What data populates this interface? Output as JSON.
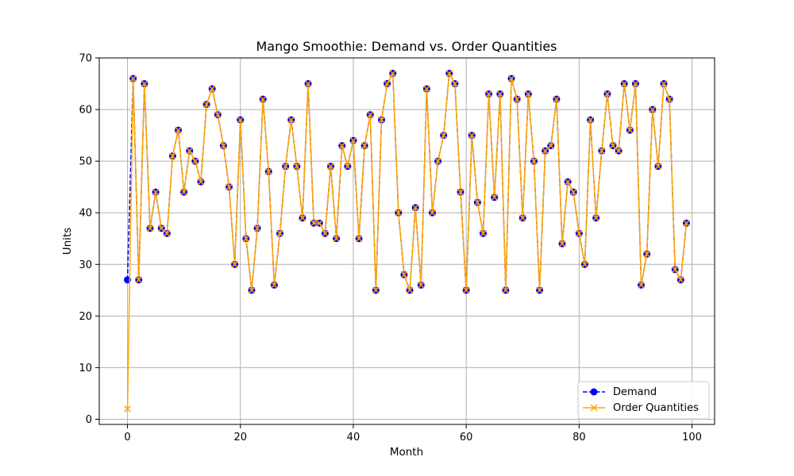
{
  "chart_data": {
    "type": "line",
    "title": "Mango Smoothie: Demand vs. Order Quantities",
    "xlabel": "Month",
    "ylabel": "Units",
    "xlim": [
      -5,
      104
    ],
    "ylim": [
      -1,
      70
    ],
    "xticks": [
      0,
      20,
      40,
      60,
      80,
      100
    ],
    "yticks": [
      0,
      10,
      20,
      30,
      40,
      50,
      60,
      70
    ],
    "grid": true,
    "legend_position": "lower-right",
    "series": [
      {
        "name": "Demand",
        "color": "#0000ff",
        "marker": "circle",
        "linestyle": "dashed",
        "values": [
          27,
          66,
          27,
          65,
          37,
          44,
          37,
          36,
          51,
          56,
          44,
          52,
          50,
          46,
          61,
          64,
          59,
          53,
          45,
          30,
          58,
          35,
          25,
          37,
          62,
          48,
          26,
          36,
          49,
          58,
          49,
          39,
          65,
          38,
          38,
          36,
          49,
          35,
          53,
          49,
          54,
          35,
          53,
          59,
          25,
          58,
          65,
          67,
          40,
          28,
          25,
          41,
          26,
          64,
          40,
          50,
          55,
          67,
          65,
          44,
          25,
          55,
          42,
          36,
          63,
          43,
          63,
          25,
          66,
          62,
          39,
          63,
          50,
          25,
          52,
          53,
          62,
          34,
          46,
          44,
          36,
          30,
          58,
          39,
          52,
          63,
          53,
          52,
          65,
          56,
          65,
          26,
          32,
          60,
          49,
          65,
          62,
          29,
          27,
          38
        ]
      },
      {
        "name": "Order Quantities",
        "color": "#ffa500",
        "marker": "x",
        "linestyle": "solid",
        "values": [
          2,
          66,
          27,
          65,
          37,
          44,
          37,
          36,
          51,
          56,
          44,
          52,
          50,
          46,
          61,
          64,
          59,
          53,
          45,
          30,
          58,
          35,
          25,
          37,
          62,
          48,
          26,
          36,
          49,
          58,
          49,
          39,
          65,
          38,
          38,
          36,
          49,
          35,
          53,
          49,
          54,
          35,
          53,
          59,
          25,
          58,
          65,
          67,
          40,
          28,
          25,
          41,
          26,
          64,
          40,
          50,
          55,
          67,
          65,
          44,
          25,
          55,
          42,
          36,
          63,
          43,
          63,
          25,
          66,
          62,
          39,
          63,
          50,
          25,
          52,
          53,
          62,
          34,
          46,
          44,
          36,
          30,
          58,
          39,
          52,
          63,
          53,
          52,
          65,
          56,
          65,
          26,
          32,
          60,
          49,
          65,
          62,
          29,
          27,
          38
        ]
      }
    ]
  }
}
